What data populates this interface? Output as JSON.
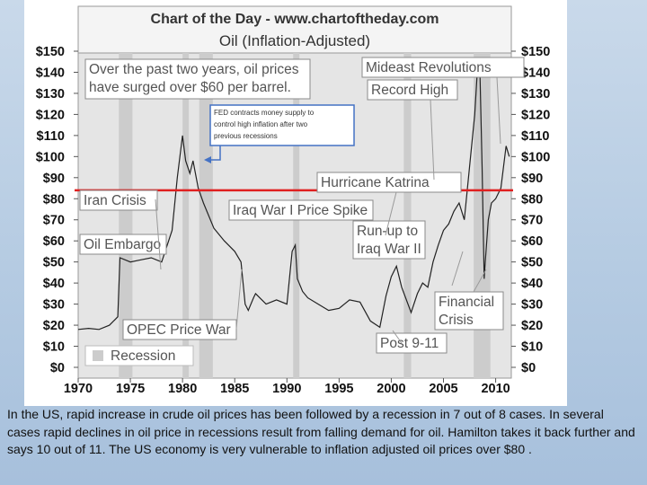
{
  "chart_data": {
    "type": "line",
    "header": "Chart of the Day - www.chartoftheday.com",
    "title": "Oil (Inflation-Adjusted)",
    "xlabel": "",
    "ylabel": "",
    "xlim": [
      1970,
      2011.5
    ],
    "ylim": [
      0,
      150
    ],
    "y_ticks": [
      "$150",
      "$140",
      "$130",
      "$120",
      "$110",
      "$100",
      "$90",
      "$80",
      "$70",
      "$60",
      "$50",
      "$40",
      "$30",
      "$20",
      "$10",
      "$0"
    ],
    "x_ticks": [
      "1970",
      "1975",
      "1980",
      "1985",
      "1990",
      "1995",
      "2000",
      "2005",
      "2010"
    ],
    "reference_line": {
      "y": 84,
      "color": "#e02020"
    },
    "recessions": [
      [
        1973.9,
        1975.2
      ],
      [
        1980.0,
        1980.6
      ],
      [
        1981.6,
        1982.9
      ],
      [
        1990.6,
        1991.2
      ],
      [
        2001.2,
        2001.9
      ],
      [
        2007.9,
        2009.5
      ]
    ],
    "series": [
      {
        "color": "#222222",
        "x": [
          1970,
          1971,
          1972,
          1973,
          1973.8,
          1974.0,
          1975,
          1976,
          1977,
          1978,
          1979,
          1979.5,
          1980.0,
          1980.3,
          1980.7,
          1981.0,
          1981.5,
          1982,
          1983,
          1984,
          1985,
          1985.6,
          1986.0,
          1986.3,
          1986.8,
          1987,
          1988,
          1989,
          1990.0,
          1990.5,
          1990.8,
          1991.0,
          1991.5,
          1992,
          1993,
          1994,
          1995,
          1996,
          1997,
          1998.0,
          1998.9,
          1999.5,
          2000,
          2000.5,
          2001,
          2001.9,
          2002.5,
          2003,
          2003.5,
          2004,
          2004.5,
          2005,
          2005.5,
          2006,
          2006.5,
          2007,
          2007.5,
          2008.0,
          2008.3,
          2008.5,
          2008.7,
          2008.9,
          2009.0,
          2009.3,
          2009.6,
          2010,
          2010.5,
          2011.0,
          2011.3
        ],
        "values": [
          18,
          18.5,
          18,
          20,
          24,
          52,
          50,
          51,
          52,
          50,
          65,
          90,
          110,
          98,
          92,
          98,
          85,
          78,
          66,
          60,
          55,
          50,
          30,
          27,
          33,
          35,
          30,
          32,
          30,
          55,
          58,
          42,
          36,
          33,
          30,
          27,
          28,
          32,
          31,
          22,
          19,
          34,
          43,
          48,
          38,
          26,
          35,
          40,
          38,
          50,
          58,
          65,
          68,
          74,
          78,
          70,
          95,
          120,
          145,
          138,
          95,
          42,
          50,
          70,
          78,
          80,
          85,
          105,
          100
        ]
      }
    ],
    "annotations": [
      {
        "text_lines": [
          "Over the past two years, oil prices",
          "have surged over $60 per barrel."
        ]
      },
      {
        "text_lines": [
          "Mideast Revolutions"
        ]
      },
      {
        "text_lines": [
          "Record High"
        ]
      },
      {
        "text_lines": [
          "FED contracts money supply  to",
          "control high inflation after two",
          "previous recessions"
        ]
      },
      {
        "text_lines": [
          "Hurricane Katrina"
        ]
      },
      {
        "text_lines": [
          "Iran Crisis"
        ]
      },
      {
        "text_lines": [
          "Iraq War I Price Spike"
        ]
      },
      {
        "text_lines": [
          "Run-up to",
          "Iraq War II"
        ]
      },
      {
        "text_lines": [
          "Oil Embargo"
        ]
      },
      {
        "text_lines": [
          "Financial",
          "Crisis"
        ]
      },
      {
        "text_lines": [
          "OPEC Price War"
        ]
      },
      {
        "text_lines": [
          "Post 9-11"
        ]
      }
    ],
    "legend": {
      "label": "Recession",
      "swatch_color": "#cccccc"
    }
  },
  "caption": "In the US, rapid increase in crude oil prices has been  followed by a  recession in 7 out of 8 cases. In several cases rapid declines in oil price in recessions result from falling demand for oil. Hamilton takes it back further and says 10 out of 11. The US economy is very vulnerable to inflation adjusted oil prices over $80 ."
}
